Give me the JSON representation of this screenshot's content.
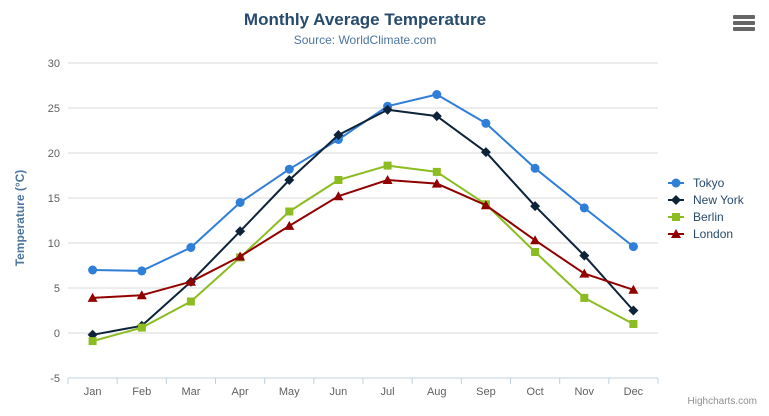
{
  "header": {
    "title": "Monthly Average Temperature",
    "subtitle": "Source: WorldClimate.com"
  },
  "credits_label": "Highcharts.com",
  "icons": {
    "hamburger_menu": "export-context-menu"
  },
  "colors": {
    "title": "#274b6d",
    "subtitle": "#4d759e",
    "axis_title": "#4d759e",
    "tick_label": "#606060",
    "grid": "#d8d8d8",
    "axis_line": "#c0d0e0",
    "legend_text": "#274b6d",
    "credits": "#909090",
    "menu_icon": "#666666",
    "background": "#ffffff"
  },
  "chart_data": {
    "type": "line",
    "title": "Monthly Average Temperature",
    "subtitle": "Source: WorldClimate.com",
    "xlabel": "",
    "ylabel": "Temperature (°C)",
    "categories": [
      "Jan",
      "Feb",
      "Mar",
      "Apr",
      "May",
      "Jun",
      "Jul",
      "Aug",
      "Sep",
      "Oct",
      "Nov",
      "Dec"
    ],
    "series": [
      {
        "name": "Tokyo",
        "color": "#2f7ed8",
        "marker": "circle",
        "values": [
          7.0,
          6.9,
          9.5,
          14.5,
          18.2,
          21.5,
          25.2,
          26.5,
          23.3,
          18.3,
          13.9,
          9.6
        ]
      },
      {
        "name": "New York",
        "color": "#0d233a",
        "marker": "diamond",
        "values": [
          -0.2,
          0.8,
          5.7,
          11.3,
          17.0,
          22.0,
          24.8,
          24.1,
          20.1,
          14.1,
          8.6,
          2.5
        ]
      },
      {
        "name": "Berlin",
        "color": "#8bbc21",
        "marker": "square",
        "values": [
          -0.9,
          0.6,
          3.5,
          8.4,
          13.5,
          17.0,
          18.6,
          17.9,
          14.3,
          9.0,
          3.9,
          1.0
        ]
      },
      {
        "name": "London",
        "color": "#910000",
        "marker": "triangle",
        "values": [
          3.9,
          4.2,
          5.7,
          8.5,
          11.9,
          15.2,
          17.0,
          16.6,
          14.2,
          10.3,
          6.6,
          4.8
        ]
      }
    ],
    "ylim": [
      -5,
      30
    ],
    "ytick_step": 5,
    "grid": true,
    "legend_position": "right"
  }
}
